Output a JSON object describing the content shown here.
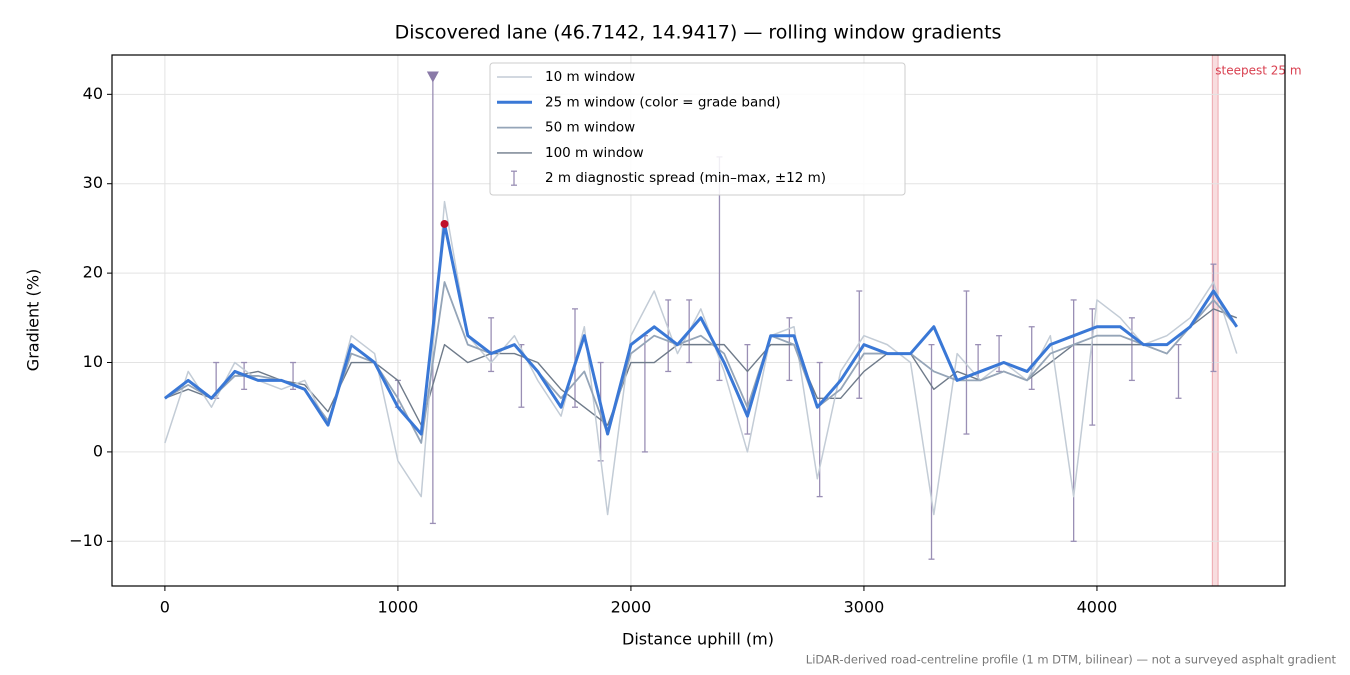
{
  "chart_data": {
    "type": "line",
    "title": "Discovered lane (46.7142, 14.9417) — rolling window gradients",
    "x_label": "Distance uphill (m)",
    "y_label": "Gradient (%)",
    "footnote": "LiDAR-derived road-centreline profile (1 m DTM, bilinear) — not a surveyed asphalt gradient",
    "xlim": [
      -227,
      4807
    ],
    "ylim": [
      -15,
      44.4
    ],
    "xticks": [
      0,
      1000,
      2000,
      3000,
      4000
    ],
    "yticks": [
      {
        "value": -10,
        "label": "−10"
      },
      0,
      10,
      20,
      30,
      40
    ],
    "grid": true,
    "legend": "upper center",
    "x": [
      0,
      100,
      200,
      300,
      400,
      500,
      600,
      700,
      800,
      900,
      1000,
      1100,
      1200,
      1300,
      1400,
      1500,
      1600,
      1700,
      1800,
      1900,
      2000,
      2100,
      2200,
      2300,
      2400,
      2500,
      2600,
      2700,
      2800,
      2900,
      3000,
      3100,
      3200,
      3300,
      3400,
      3500,
      3600,
      3700,
      3800,
      3900,
      4000,
      4100,
      4200,
      4300,
      4400,
      4500,
      4600
    ],
    "series": [
      {
        "name": "10 m window",
        "color": "#c3ccd6",
        "width": 1.5,
        "values": [
          1,
          9,
          5,
          10,
          8,
          7,
          8,
          3,
          13,
          11,
          -1,
          -5,
          28,
          13,
          10,
          13,
          8,
          4,
          14,
          -7,
          13,
          18,
          11,
          16,
          9,
          0,
          13,
          14,
          -3,
          9,
          13,
          12,
          10,
          -7,
          11,
          8,
          10,
          8,
          13,
          -5,
          17,
          15,
          12,
          13,
          15,
          19,
          11
        ]
      },
      {
        "name": "25 m window (color = grade band)",
        "color": "#3a78d6",
        "width": 3,
        "values": [
          6,
          8,
          6,
          9,
          8,
          8,
          7,
          3,
          12,
          10,
          5,
          2,
          25.5,
          13,
          11,
          12,
          9,
          5,
          13,
          2,
          12,
          14,
          12,
          15,
          10,
          4,
          13,
          13,
          5,
          8,
          12,
          11,
          11,
          14,
          8,
          9,
          10,
          9,
          12,
          13,
          14,
          14,
          12,
          12,
          14,
          18,
          14
        ]
      },
      {
        "name": "50 m window",
        "color": "#95a5b8",
        "width": 1.8,
        "values": [
          6,
          7.5,
          6,
          8.5,
          8.5,
          8,
          7,
          3.5,
          11,
          10,
          6,
          1,
          19,
          12,
          11,
          12,
          9,
          6,
          9,
          2,
          11,
          13,
          12,
          13,
          11,
          5,
          13,
          12,
          5,
          7,
          11,
          11,
          11,
          9,
          8,
          8,
          9,
          8,
          11,
          12,
          13,
          13,
          12,
          11,
          14,
          17,
          14
        ]
      },
      {
        "name": "100 m window",
        "color": "#6f7b8a",
        "width": 1.4,
        "values": [
          6,
          7,
          6,
          8.5,
          9,
          8,
          7.5,
          4.5,
          10,
          10,
          8,
          3,
          12,
          10,
          11,
          11,
          10,
          7,
          5,
          3,
          10,
          10,
          12,
          12,
          12,
          9,
          12,
          12,
          6,
          6,
          9,
          11,
          11,
          7,
          9,
          8,
          9,
          8,
          10,
          12,
          12,
          12,
          12,
          11,
          14,
          16,
          15
        ]
      }
    ],
    "grade_bands": [
      {
        "min": 20,
        "color": "#e08c00"
      },
      {
        "min": 25,
        "color": "#c0102a"
      }
    ],
    "error_bars": {
      "name": "2 m diagnostic spread (min–max, ±12 m)",
      "color": "#9a8fb5",
      "x": [
        220,
        340,
        550,
        1000,
        1150,
        1400,
        1530,
        1760,
        1870,
        2060,
        2160,
        2250,
        2380,
        2500,
        2680,
        2810,
        2980,
        3290,
        3440,
        3490,
        3580,
        3720,
        3900,
        3980,
        4150,
        4350,
        4500
      ],
      "min": [
        6,
        7,
        7,
        5,
        -8,
        9,
        5,
        5,
        -1,
        0,
        9,
        10,
        8,
        2,
        8,
        -5,
        6,
        -12,
        2,
        8,
        9,
        7,
        -10,
        3,
        8,
        6,
        9
      ],
      "max": [
        10,
        10,
        10,
        8,
        42,
        15,
        12,
        16,
        10,
        13,
        17,
        17,
        33,
        12,
        15,
        10,
        18,
        12,
        18,
        12,
        13,
        14,
        17,
        16,
        15,
        12,
        21
      ]
    },
    "peak_marker": {
      "x": 1150,
      "y": 42,
      "color": "#8a7aa8"
    },
    "steepest": {
      "label": "steepest 25 m",
      "x": [
        4495,
        4520
      ],
      "color": "#d94050"
    }
  }
}
